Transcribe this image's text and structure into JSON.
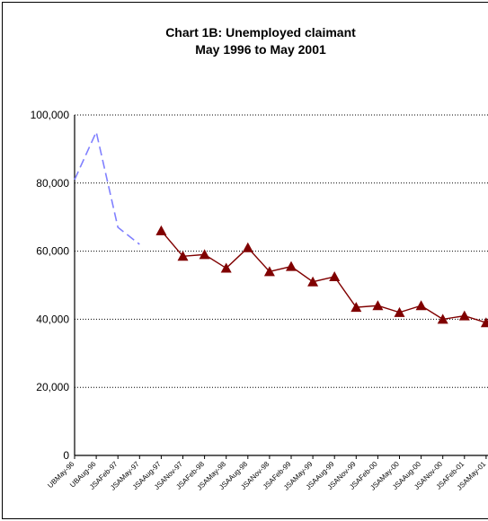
{
  "chart_data": {
    "type": "line",
    "title": "Chart 1B:  Unemployed claimant",
    "subtitle": "May 1996 to May 2001",
    "categories": [
      "UBMay-96",
      "UBAug-96",
      "JSAFeb-97",
      "JSAMay-97",
      "JSAAug-97",
      "JSANov-97",
      "JSAFeb-98",
      "JSAMay-98",
      "JSAAug-98",
      "JSANov-98",
      "JSAFeb-99",
      "JSAMay-99",
      "JSAAug-99",
      "JSANov-99",
      "JSAFeb-00",
      "JSAMay-00",
      "JSAAug-00",
      "JSANov-00",
      "JSAFeb-01",
      "JSAMay-01"
    ],
    "series": [
      {
        "color": "#8080ff",
        "dashed": true,
        "values": [
          81000,
          95000,
          67000,
          62000,
          null,
          null,
          null,
          null,
          null,
          null,
          null,
          null,
          null,
          null,
          null,
          null,
          null,
          null,
          null,
          null
        ]
      },
      {
        "color": "#800000",
        "marker": "triangle",
        "values": [
          null,
          null,
          null,
          null,
          66000,
          58500,
          59000,
          55000,
          61000,
          54000,
          55500,
          51000,
          52500,
          43500,
          44000,
          42000,
          44000,
          40000,
          41000,
          39000
        ]
      }
    ],
    "ylim": [
      0,
      100000
    ],
    "yticks": [
      0,
      {
        "value": 20000,
        "label": "20,000"
      },
      {
        "value": 40000,
        "label": "40,000"
      },
      {
        "value": 60000,
        "label": "60,000"
      },
      {
        "value": 80000,
        "label": "80,000"
      },
      {
        "value": 100000,
        "label": "100,000"
      }
    ],
    "grid": true
  }
}
